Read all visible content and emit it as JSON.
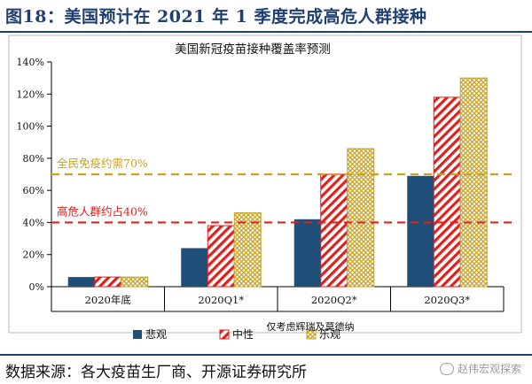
{
  "figure": {
    "title": "图18：美国预计在 2021 年 1 季度完成高危人群接种",
    "source": "数据来源：各大疫苗生厂商、开源证券研究所",
    "watermark": "赵伟宏观探索"
  },
  "chart_data": {
    "type": "bar",
    "title": "美国新冠疫苗接种覆盖率预测",
    "subtitle": "仅考虑辉瑞及莫德纳",
    "categories": [
      "2020年底",
      "2020Q1*",
      "2020Q2*",
      "2020Q3*"
    ],
    "series": [
      {
        "name": "悲观",
        "values": [
          6,
          24,
          42,
          69
        ],
        "color": "#1f4e79",
        "pattern": "solid"
      },
      {
        "name": "中性",
        "values": [
          6,
          38,
          70,
          118
        ],
        "color": "#e0201c",
        "pattern": "diagonal-stripe"
      },
      {
        "name": "乐观",
        "values": [
          6,
          46,
          86,
          130
        ],
        "color": "#c8a227",
        "pattern": "grid-hatch"
      }
    ],
    "ylim": [
      0,
      140
    ],
    "yticks": [
      0,
      20,
      40,
      60,
      80,
      100,
      120,
      140
    ],
    "ytick_labels": [
      "0%",
      "20%",
      "40%",
      "60%",
      "80%",
      "100%",
      "120%",
      "140%"
    ],
    "reference_lines": [
      {
        "label": "全民免疫约需70%",
        "value": 70,
        "color": "#c8a227",
        "style": "dashed"
      },
      {
        "label": "高危人群约占40%",
        "value": 40,
        "color": "#e0201c",
        "style": "dashed"
      }
    ],
    "legend_position": "bottom",
    "grid": false
  }
}
